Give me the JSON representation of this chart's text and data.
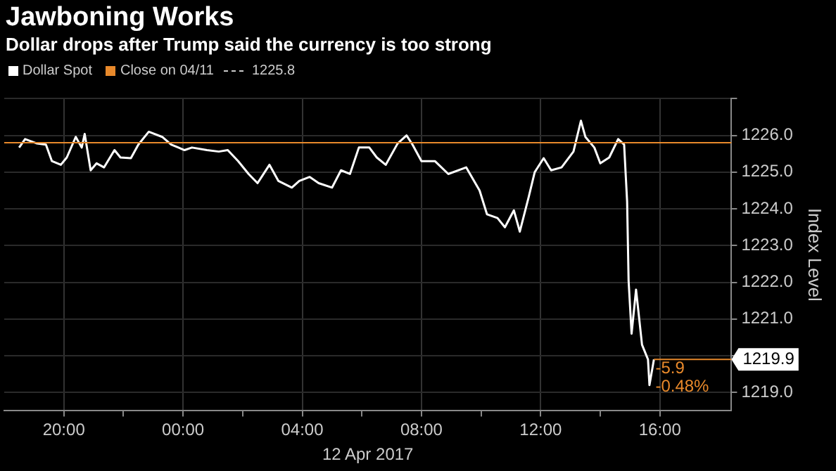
{
  "chart_data": {
    "type": "line",
    "title": "Jawboning Works",
    "subtitle": "Dollar drops after Trump said the currency is too strong",
    "ylabel": "Index Level",
    "xlabel": "12 Apr 2017",
    "x": [
      "2017-04-11T18:30",
      "2017-04-11T18:42",
      "2017-04-11T19:06",
      "2017-04-11T19:24",
      "2017-04-11T19:36",
      "2017-04-11T19:54",
      "2017-04-11T20:06",
      "2017-04-11T20:24",
      "2017-04-11T20:36",
      "2017-04-11T20:42",
      "2017-04-11T20:54",
      "2017-04-11T21:06",
      "2017-04-11T21:21",
      "2017-04-11T21:42",
      "2017-04-11T21:54",
      "2017-04-11T22:15",
      "2017-04-11T22:30",
      "2017-04-11T22:51",
      "2017-04-11T23:18",
      "2017-04-11T23:36",
      "2017-04-12T00:03",
      "2017-04-12T00:18",
      "2017-04-12T00:48",
      "2017-04-12T01:12",
      "2017-04-12T01:30",
      "2017-04-12T01:51",
      "2017-04-12T02:12",
      "2017-04-12T02:30",
      "2017-04-12T02:54",
      "2017-04-12T03:12",
      "2017-04-12T03:39",
      "2017-04-12T03:54",
      "2017-04-12T04:15",
      "2017-04-12T04:33",
      "2017-04-12T05:00",
      "2017-04-12T05:18",
      "2017-04-12T05:36",
      "2017-04-12T05:54",
      "2017-04-12T06:15",
      "2017-04-12T06:30",
      "2017-04-12T06:48",
      "2017-04-12T07:12",
      "2017-04-12T07:30",
      "2017-04-12T07:42",
      "2017-04-12T08:00",
      "2017-04-12T08:27",
      "2017-04-12T08:54",
      "2017-04-12T09:30",
      "2017-04-12T09:57",
      "2017-04-12T10:12",
      "2017-04-12T10:33",
      "2017-04-12T10:48",
      "2017-04-12T11:06",
      "2017-04-12T11:18",
      "2017-04-12T11:36",
      "2017-04-12T11:48",
      "2017-04-12T12:06",
      "2017-04-12T12:21",
      "2017-04-12T12:42",
      "2017-04-12T13:06",
      "2017-04-12T13:21",
      "2017-04-12T13:30",
      "2017-04-12T13:48",
      "2017-04-12T14:00",
      "2017-04-12T14:18",
      "2017-04-12T14:36",
      "2017-04-12T14:48",
      "2017-04-12T14:54",
      "2017-04-12T14:57",
      "2017-04-12T15:03",
      "2017-04-12T15:12",
      "2017-04-12T15:24",
      "2017-04-12T15:36",
      "2017-04-12T15:39",
      "2017-04-12T15:48"
    ],
    "series": [
      {
        "name": "Dollar Spot",
        "color": "#ffffff",
        "values": [
          1225.67,
          1225.9,
          1225.78,
          1225.75,
          1225.3,
          1225.2,
          1225.4,
          1225.96,
          1225.67,
          1226.04,
          1225.05,
          1225.24,
          1225.13,
          1225.6,
          1225.4,
          1225.38,
          1225.75,
          1226.1,
          1225.96,
          1225.75,
          1225.6,
          1225.67,
          1225.6,
          1225.56,
          1225.6,
          1225.3,
          1224.95,
          1224.7,
          1225.2,
          1224.76,
          1224.58,
          1224.76,
          1224.87,
          1224.7,
          1224.58,
          1225.05,
          1224.95,
          1225.67,
          1225.67,
          1225.4,
          1225.2,
          1225.78,
          1226.0,
          1225.75,
          1225.3,
          1225.3,
          1224.95,
          1225.13,
          1224.5,
          1223.85,
          1223.75,
          1223.5,
          1223.96,
          1223.38,
          1224.33,
          1225.0,
          1225.38,
          1225.05,
          1225.13,
          1225.56,
          1226.4,
          1225.96,
          1225.67,
          1225.24,
          1225.4,
          1225.9,
          1225.75,
          1224.2,
          1222.04,
          1220.6,
          1221.8,
          1220.3,
          1219.9,
          1219.2,
          1219.9
        ],
        "value_labels": [
          null,
          null,
          null,
          null,
          null,
          null,
          null,
          null,
          null,
          null,
          null,
          null,
          null,
          null,
          null,
          null,
          null,
          null,
          null,
          null,
          null,
          null,
          null,
          null,
          null,
          null,
          null,
          null,
          null,
          null,
          null,
          null,
          null,
          null,
          null,
          null,
          null,
          null,
          null,
          null,
          null,
          null,
          null,
          null,
          null,
          null,
          null,
          null,
          null,
          null,
          null,
          null,
          null,
          null,
          null,
          null,
          null,
          null,
          null,
          null,
          null,
          null,
          null,
          null,
          null,
          null,
          null,
          null,
          null,
          null,
          null,
          null,
          null,
          null,
          "1219.9"
        ]
      }
    ],
    "xlim": [
      "2017-04-11T18:00",
      "2017-04-12T18:24"
    ],
    "xticks": [
      {
        "value": "2017-04-11T20:00",
        "label": "20:00"
      },
      {
        "value": "2017-04-11T22:00",
        "label": null
      },
      {
        "value": "2017-04-12T00:00",
        "label": "00:00"
      },
      {
        "value": "2017-04-12T02:00",
        "label": null
      },
      {
        "value": "2017-04-12T04:00",
        "label": "04:00"
      },
      {
        "value": "2017-04-12T06:00",
        "label": null
      },
      {
        "value": "2017-04-12T08:00",
        "label": "08:00"
      },
      {
        "value": "2017-04-12T10:00",
        "label": null
      },
      {
        "value": "2017-04-12T12:00",
        "label": "12:00"
      },
      {
        "value": "2017-04-12T14:00",
        "label": null
      },
      {
        "value": "2017-04-12T16:00",
        "label": "16:00"
      }
    ],
    "ylim": [
      1218.5,
      1227
    ],
    "yticks": [
      {
        "value": 1219,
        "label": "1219.0"
      },
      {
        "value": 1220,
        "label": null
      },
      {
        "value": 1221,
        "label": "1221.0"
      },
      {
        "value": 1222,
        "label": "1222.0"
      },
      {
        "value": 1223,
        "label": "1223.0"
      },
      {
        "value": 1224,
        "label": "1224.0"
      },
      {
        "value": 1225,
        "label": "1225.0"
      },
      {
        "value": 1226,
        "label": "1226.0"
      },
      {
        "value": 1227,
        "label": null
      }
    ],
    "ref_lines": [
      {
        "axis": "y",
        "value": 1225.8,
        "label": "Close on 04/11",
        "color": "#e8892b"
      }
    ],
    "annotations": [
      "1225.8",
      {
        "text": "-5.9",
        "x": "2017-04-12T15:51",
        "y": 1219.65
      },
      {
        "text": "-0.48%",
        "x": "2017-04-12T15:51",
        "y": 1219.15
      }
    ],
    "grid": true,
    "legend": "top left",
    "marker": "none",
    "line_style": "solid"
  }
}
